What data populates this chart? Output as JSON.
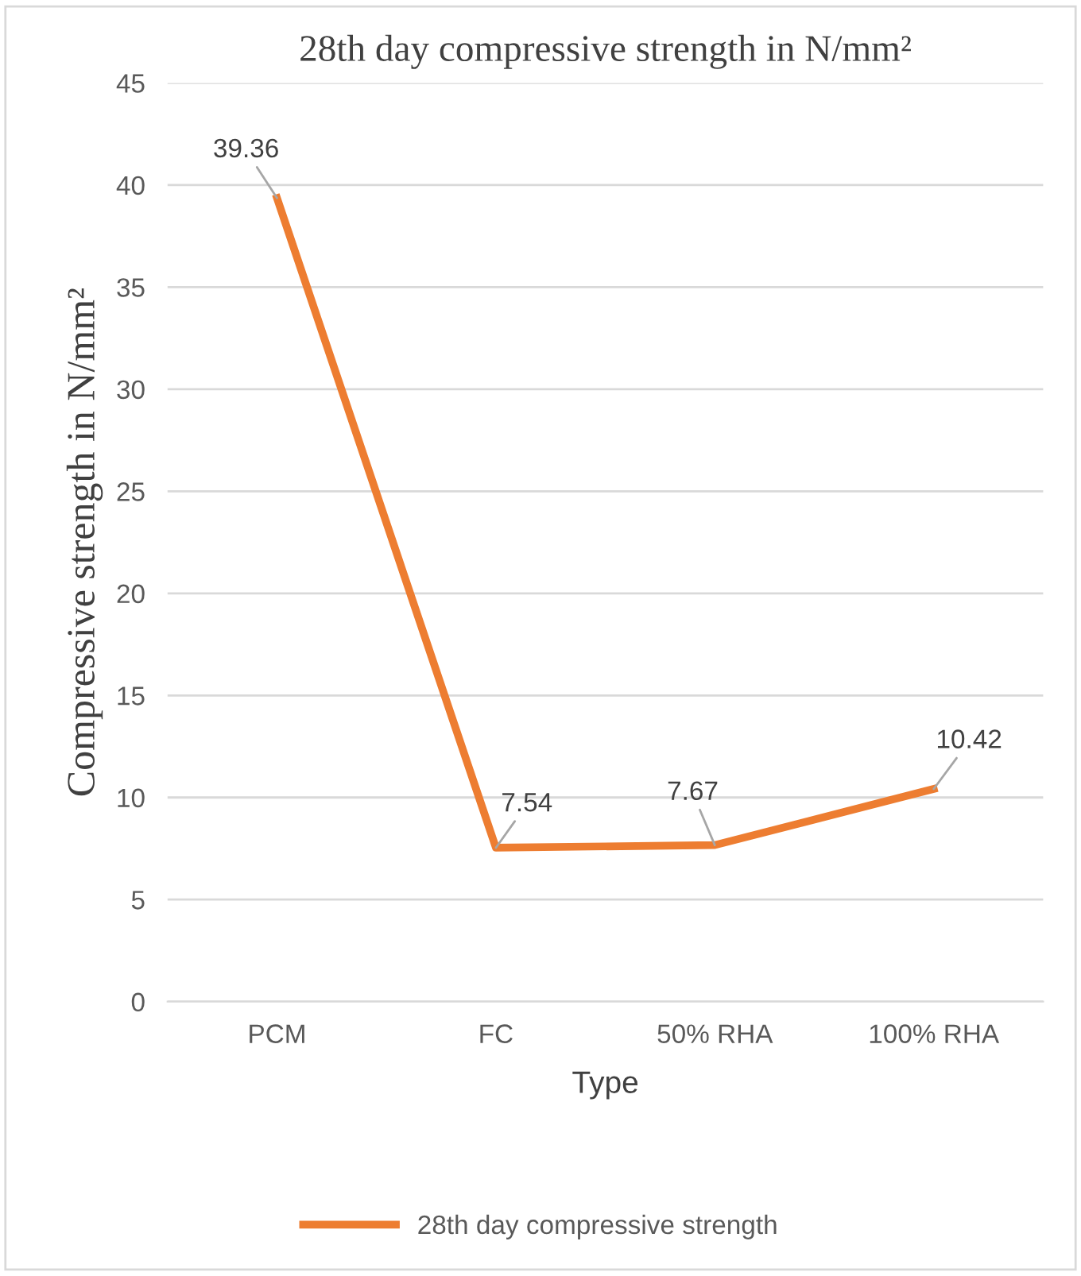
{
  "chart_data": {
    "type": "line",
    "title": "28th day compressive strength in N/mm²",
    "xlabel": "Type",
    "ylabel": "Compressive strength in N/mm²",
    "categories": [
      "PCM",
      "FC",
      "50% RHA",
      "100% RHA"
    ],
    "series": [
      {
        "name": "28th day compressive strength",
        "color": "#ed7d31",
        "values": [
          39.36,
          7.54,
          7.67,
          10.42
        ]
      }
    ],
    "ylim": [
      0,
      45
    ],
    "yticks": [
      0,
      5,
      10,
      15,
      20,
      25,
      30,
      35,
      40,
      45
    ],
    "grid": "y",
    "legend": "bottom",
    "data_labels": true,
    "marker": "none",
    "line_style": "solid"
  }
}
